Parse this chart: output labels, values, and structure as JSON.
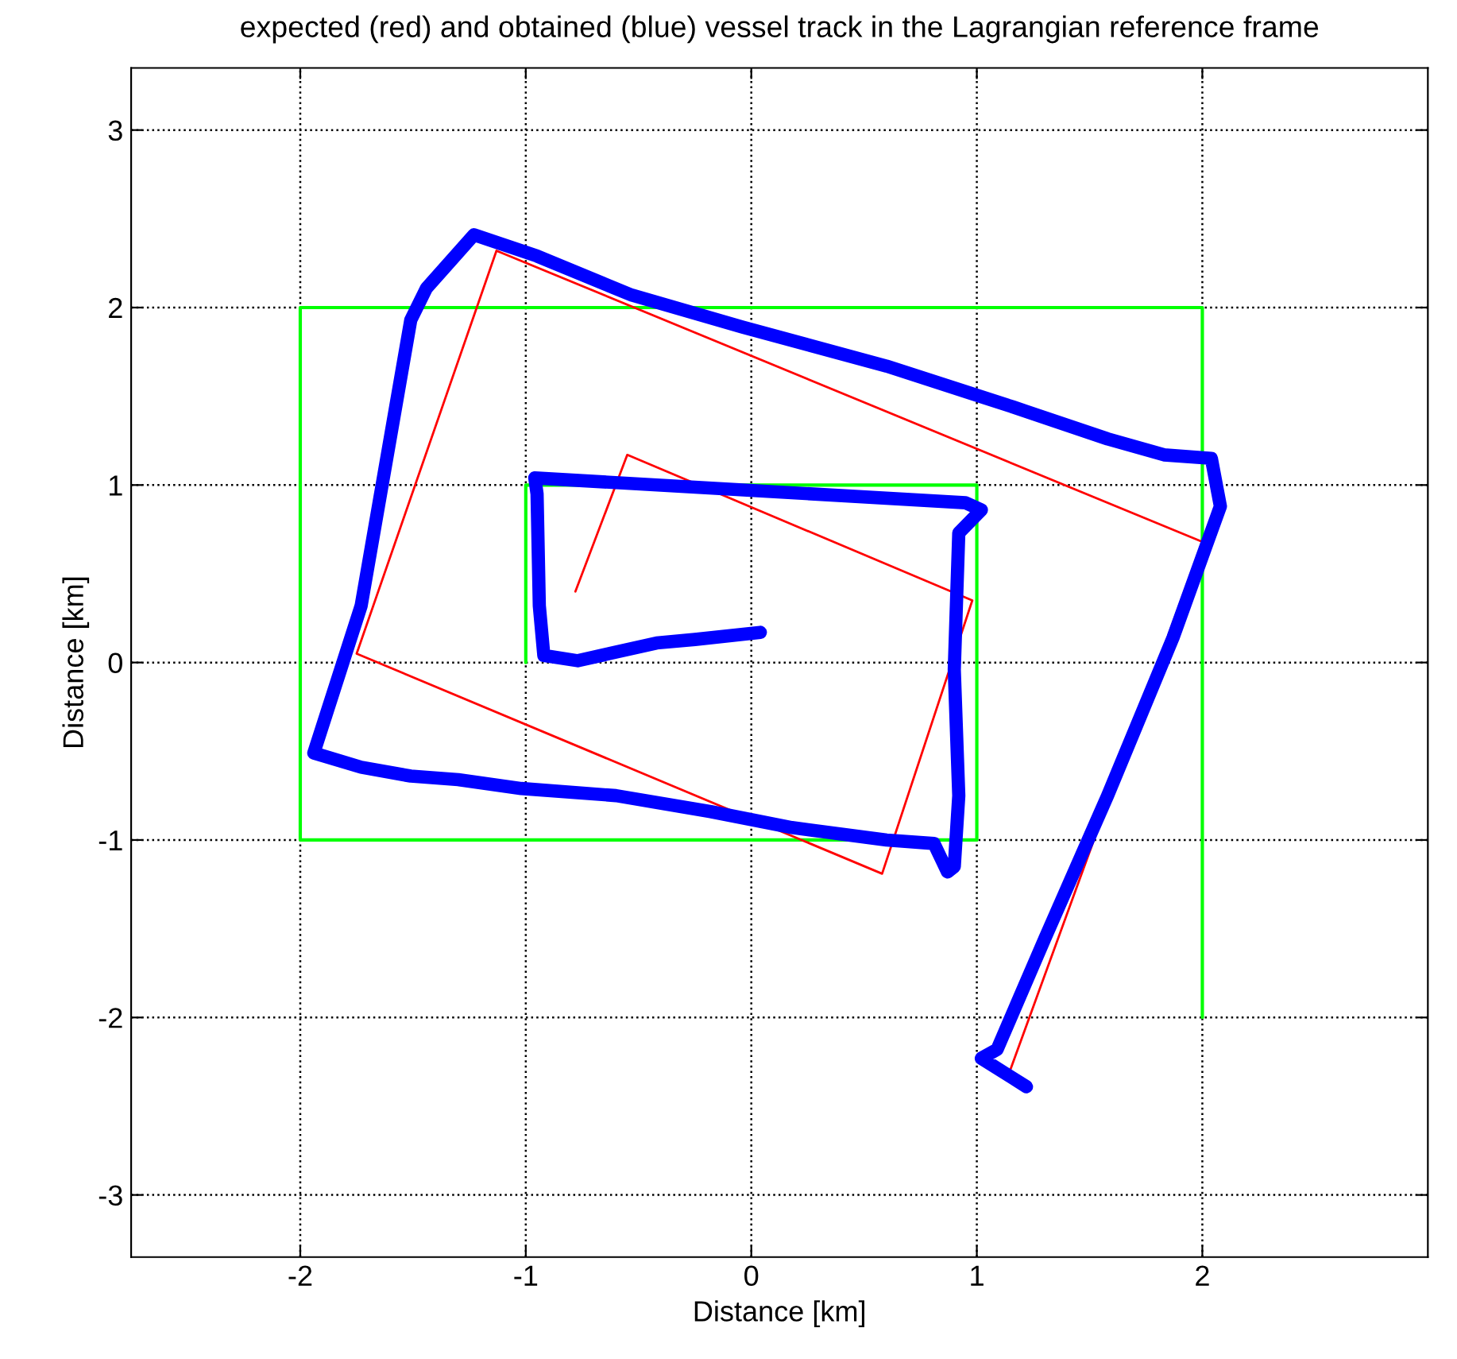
{
  "chart_data": {
    "type": "line",
    "title": "expected (red) and obtained (blue) vessel track in the Lagrangian reference frame",
    "xlabel": "Distance [km]",
    "ylabel": "Distance [km]",
    "xlim": [
      -2.75,
      3
    ],
    "ylim": [
      -3.35,
      3.35
    ],
    "xticks": [
      -2,
      -1,
      0,
      1,
      2
    ],
    "yticks": [
      -3,
      -2,
      -1,
      0,
      1,
      2,
      3
    ],
    "grid": true,
    "marker": "none",
    "line_style": "solid",
    "legend": false,
    "series": [
      {
        "color": "#00ff00",
        "x": [
          -1,
          -1,
          1,
          1,
          -2,
          -2,
          2,
          2
        ],
        "values": [
          0,
          1,
          1,
          -1,
          -1,
          2,
          2,
          -2
        ]
      },
      {
        "color": "#ff0000",
        "x": [
          -0.78,
          -0.55,
          0.98,
          0.58,
          -1.75,
          -1.13,
          2.0,
          1.15
        ],
        "values": [
          0.4,
          1.17,
          0.35,
          -1.19,
          0.05,
          2.32,
          0.68,
          -2.29
        ]
      },
      {
        "color": "#0000ff",
        "x": [
          0.04,
          -0.25,
          -0.42,
          -0.63,
          -0.77,
          -0.92,
          -0.94,
          -0.95,
          -0.96,
          0.95,
          1.02,
          0.92,
          0.9,
          0.92,
          0.9,
          0.87,
          0.81,
          0.6,
          0.18,
          -0.18,
          -0.6,
          -1.02,
          -1.3,
          -1.51,
          -1.73,
          -1.94,
          -1.73,
          -1.51,
          -1.44,
          -1.23,
          -0.95,
          -0.53,
          -0.04,
          0.6,
          1.16,
          1.58,
          1.83,
          2.04,
          2.08,
          1.87,
          1.58,
          1.3,
          1.09,
          1.02,
          1.22
        ],
        "values": [
          0.17,
          0.13,
          0.11,
          0.05,
          0.01,
          0.04,
          0.32,
          0.95,
          1.04,
          0.9,
          0.86,
          0.73,
          -0.04,
          -0.75,
          -1.15,
          -1.18,
          -1.02,
          -1.0,
          -0.93,
          -0.84,
          -0.75,
          -0.71,
          -0.66,
          -0.64,
          -0.59,
          -0.51,
          0.32,
          1.93,
          2.11,
          2.41,
          2.29,
          2.07,
          1.89,
          1.67,
          1.44,
          1.26,
          1.17,
          1.15,
          0.88,
          0.14,
          -0.75,
          -1.56,
          -2.18,
          -2.23,
          -2.39
        ]
      }
    ]
  }
}
